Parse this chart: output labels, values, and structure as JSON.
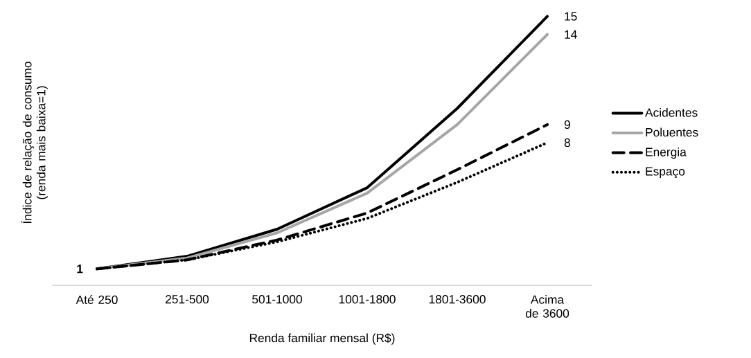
{
  "chart_data": {
    "type": "line",
    "xlabel": "Renda familiar mensal (R$)",
    "ylabel": "Índice de relação de consumo (renda mais baixa=1)",
    "categories": [
      "Até 250",
      "251-500",
      "501-1000",
      "1001-1800",
      "1801-3600",
      "Acima de 3600"
    ],
    "tick_labels": "x",
    "legend": "right",
    "series": [
      {
        "name": "Acidentes",
        "color": "#000000",
        "line_style": "solid",
        "values": [
          1,
          1.7,
          3.2,
          5.5,
          9.9,
          15
        ],
        "value_labels": [
          "1",
          null,
          null,
          null,
          null,
          "15"
        ]
      },
      {
        "name": "Poluentes",
        "color": "#a6a6a6",
        "line_style": "solid",
        "values": [
          1,
          1.6,
          3.0,
          5.2,
          9.0,
          14
        ],
        "value_labels": [
          null,
          null,
          null,
          null,
          null,
          "14"
        ]
      },
      {
        "name": "Energia",
        "color": "#000000",
        "line_style": "dashed",
        "values": [
          1,
          1.5,
          2.6,
          4.1,
          6.5,
          9
        ],
        "value_labels": [
          null,
          null,
          null,
          null,
          null,
          "9"
        ]
      },
      {
        "name": "Espaço",
        "color": "#000000",
        "line_style": "dotted",
        "values": [
          1,
          1.5,
          2.5,
          3.8,
          5.8,
          8
        ],
        "value_labels": [
          null,
          null,
          null,
          null,
          null,
          "8"
        ]
      }
    ]
  }
}
